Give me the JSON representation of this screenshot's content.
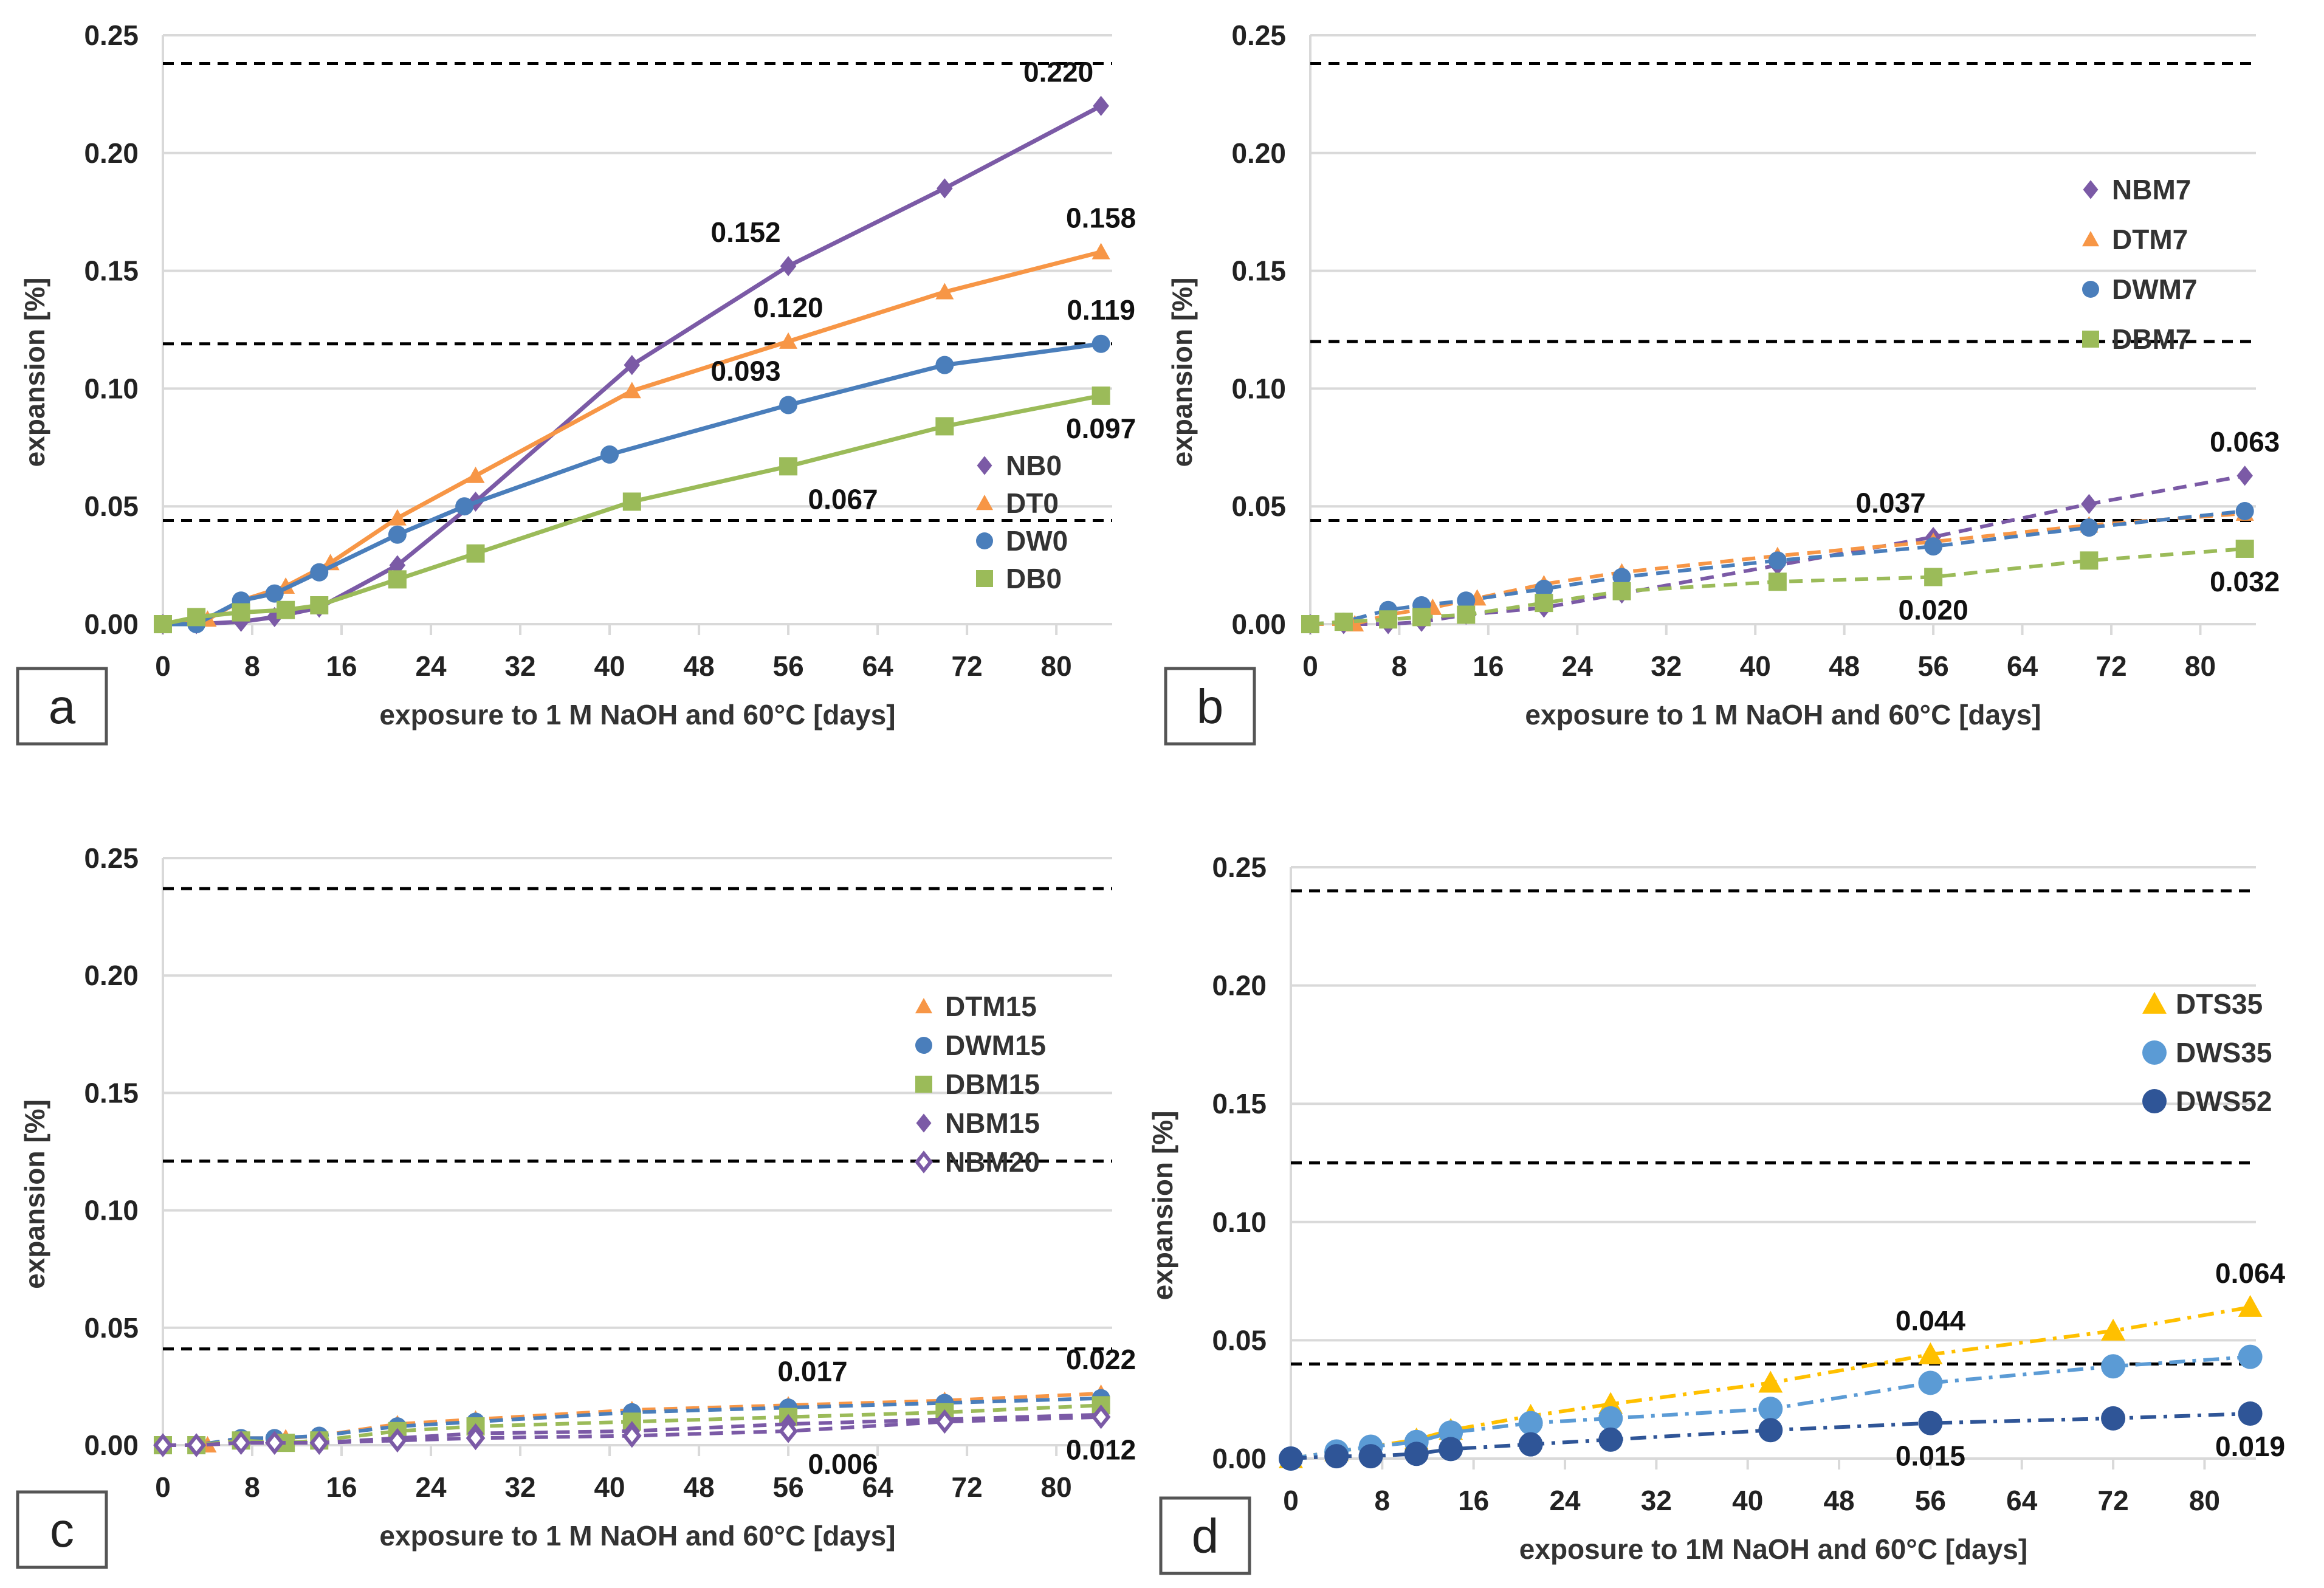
{
  "colors": {
    "purple": "#7b5aa6",
    "orange": "#f79646",
    "blue": "#4a7ebb",
    "green": "#9bbb59",
    "gold": "#ffc000",
    "lightblue": "#5b9bd5",
    "navy": "#2f5597",
    "grid": "#d9d9d9",
    "ref": "#000000"
  },
  "chart_data": [
    {
      "panel": "a",
      "type": "line",
      "xlabel": "exposure to 1 M NaOH and 60°C [days]",
      "ylabel": "expansion [%]",
      "xlim": [
        0,
        85
      ],
      "ylim": [
        0,
        0.25
      ],
      "xticks": [
        "0",
        "8",
        "16",
        "24",
        "32",
        "40",
        "48",
        "56",
        "64",
        "72",
        "80"
      ],
      "yticks": [
        "0.00",
        "0.05",
        "0.10",
        "0.15",
        "0.20",
        "0.25"
      ],
      "reference_lines": [
        0.238,
        0.119,
        0.044
      ],
      "legend": "bottom-right",
      "series": [
        {
          "name": "NB0",
          "marker": "diamond",
          "line": "solid",
          "color": "#7b5aa6",
          "x": [
            0,
            3,
            7,
            10,
            14,
            21,
            28,
            42,
            56,
            70,
            84
          ],
          "y": [
            0,
            0,
            0.001,
            0.003,
            0.007,
            0.025,
            0.052,
            0.11,
            0.152,
            0.185,
            0.22
          ]
        },
        {
          "name": "DT0",
          "marker": "triangle",
          "line": "solid",
          "color": "#f79646",
          "x": [
            0,
            4,
            7,
            11,
            15,
            21,
            28,
            42,
            56,
            70,
            84
          ],
          "y": [
            0,
            0.002,
            0.01,
            0.016,
            0.026,
            0.045,
            0.063,
            0.099,
            0.12,
            0.141,
            0.158
          ]
        },
        {
          "name": "DW0",
          "marker": "circle",
          "line": "solid",
          "color": "#4a7ebb",
          "x": [
            0,
            3,
            7,
            10,
            14,
            21,
            27,
            40,
            56,
            70,
            84
          ],
          "y": [
            0,
            0,
            0.01,
            0.013,
            0.022,
            0.038,
            0.05,
            0.072,
            0.093,
            0.11,
            0.119
          ]
        },
        {
          "name": "DB0",
          "marker": "square",
          "line": "solid",
          "color": "#9bbb59",
          "x": [
            0,
            3,
            7,
            11,
            14,
            21,
            28,
            42,
            56,
            70,
            84
          ],
          "y": [
            0,
            0.003,
            0.005,
            0.006,
            0.008,
            0.019,
            0.03,
            0.052,
            0.067,
            0.084,
            0.097
          ]
        }
      ],
      "annotations": [
        {
          "text": "0.220",
          "x": 84,
          "y": 0.22,
          "position": "above-left"
        },
        {
          "text": "0.152",
          "x": 56,
          "y": 0.152,
          "position": "above-left"
        },
        {
          "text": "0.158",
          "x": 84,
          "y": 0.158,
          "position": "above"
        },
        {
          "text": "0.120",
          "x": 56,
          "y": 0.12,
          "position": "above"
        },
        {
          "text": "0.119",
          "x": 84,
          "y": 0.119,
          "position": "above"
        },
        {
          "text": "0.093",
          "x": 56,
          "y": 0.093,
          "position": "above-left"
        },
        {
          "text": "0.097",
          "x": 84,
          "y": 0.097,
          "position": "below"
        },
        {
          "text": "0.067",
          "x": 56,
          "y": 0.067,
          "position": "below-right"
        }
      ]
    },
    {
      "panel": "b",
      "type": "line",
      "xlabel": "exposure to 1 M NaOH and 60°C [days]",
      "ylabel": "expansion [%]",
      "xlim": [
        0,
        85
      ],
      "ylim": [
        0,
        0.25
      ],
      "xticks": [
        "0",
        "8",
        "16",
        "24",
        "32",
        "40",
        "48",
        "56",
        "64",
        "72",
        "80"
      ],
      "yticks": [
        "0.00",
        "0.05",
        "0.10",
        "0.15",
        "0.20",
        "0.25"
      ],
      "reference_lines": [
        0.238,
        0.12,
        0.044
      ],
      "legend": "top-right",
      "series": [
        {
          "name": "NBM7",
          "marker": "diamond",
          "line": "dashed",
          "color": "#7b5aa6",
          "x": [
            0,
            3,
            7,
            10,
            14,
            21,
            28,
            42,
            56,
            70,
            84
          ],
          "y": [
            0,
            0,
            0,
            0.001,
            0.004,
            0.007,
            0.013,
            0.025,
            0.037,
            0.051,
            0.063
          ]
        },
        {
          "name": "DTM7",
          "marker": "triangle",
          "line": "dashed",
          "color": "#f79646",
          "x": [
            0,
            4,
            7,
            11,
            15,
            21,
            28,
            42,
            56,
            70,
            84
          ],
          "y": [
            0,
            0,
            0.004,
            0.007,
            0.011,
            0.017,
            0.022,
            0.029,
            0.035,
            0.042,
            0.047
          ]
        },
        {
          "name": "DWM7",
          "marker": "circle",
          "line": "dashed",
          "color": "#4a7ebb",
          "x": [
            0,
            3,
            7,
            10,
            14,
            21,
            28,
            42,
            56,
            70,
            84
          ],
          "y": [
            0,
            0.001,
            0.006,
            0.008,
            0.01,
            0.015,
            0.02,
            0.027,
            0.033,
            0.041,
            0.048
          ]
        },
        {
          "name": "DBM7",
          "marker": "square",
          "line": "dashed",
          "color": "#9bbb59",
          "x": [
            0,
            3,
            7,
            10,
            14,
            21,
            28,
            42,
            56,
            70,
            84
          ],
          "y": [
            0,
            0.001,
            0.002,
            0.003,
            0.004,
            0.009,
            0.014,
            0.018,
            0.02,
            0.027,
            0.032
          ]
        }
      ],
      "annotations": [
        {
          "text": "0.063",
          "x": 84,
          "y": 0.063,
          "position": "above"
        },
        {
          "text": "0.037",
          "x": 56,
          "y": 0.037,
          "position": "above-left"
        },
        {
          "text": "0.020",
          "x": 56,
          "y": 0.02,
          "position": "below"
        },
        {
          "text": "0.032",
          "x": 84,
          "y": 0.032,
          "position": "below"
        }
      ]
    },
    {
      "panel": "c",
      "type": "line",
      "xlabel": "exposure to 1 M NaOH and 60°C [days]",
      "ylabel": "expansion [%]",
      "xlim": [
        0,
        85
      ],
      "ylim": [
        0,
        0.25
      ],
      "xticks": [
        "0",
        "8",
        "16",
        "24",
        "32",
        "40",
        "48",
        "56",
        "64",
        "72",
        "80"
      ],
      "yticks": [
        "0.00",
        "0.05",
        "0.10",
        "0.15",
        "0.20",
        "0.25"
      ],
      "reference_lines": [
        0.237,
        0.121,
        0.041
      ],
      "legend": "right",
      "series": [
        {
          "name": "DTM15",
          "marker": "triangle",
          "line": "dashed",
          "color": "#f79646",
          "x": [
            0,
            4,
            7,
            11,
            14,
            21,
            28,
            42,
            56,
            70,
            84
          ],
          "y": [
            0,
            0,
            0.003,
            0.003,
            0.004,
            0.009,
            0.011,
            0.015,
            0.017,
            0.019,
            0.022
          ]
        },
        {
          "name": "DWM15",
          "marker": "circle",
          "line": "dashed",
          "color": "#4a7ebb",
          "x": [
            0,
            3,
            7,
            10,
            14,
            21,
            28,
            42,
            56,
            70,
            84
          ],
          "y": [
            0,
            0,
            0.003,
            0.003,
            0.004,
            0.008,
            0.01,
            0.014,
            0.016,
            0.018,
            0.02
          ]
        },
        {
          "name": "DBM15",
          "marker": "square",
          "line": "dashed",
          "color": "#9bbb59",
          "x": [
            0,
            3,
            7,
            11,
            14,
            21,
            28,
            42,
            56,
            70,
            84
          ],
          "y": [
            0,
            0,
            0.002,
            0.001,
            0.002,
            0.006,
            0.008,
            0.01,
            0.012,
            0.014,
            0.017
          ]
        },
        {
          "name": "NBM15",
          "marker": "diamond",
          "line": "dashed",
          "color": "#7b5aa6",
          "x": [
            0,
            3,
            7,
            10,
            14,
            21,
            28,
            42,
            56,
            70,
            84
          ],
          "y": [
            0,
            0,
            0.001,
            0.001,
            0.001,
            0.003,
            0.005,
            0.006,
            0.009,
            0.011,
            0.013
          ]
        },
        {
          "name": "NBM20",
          "marker": "open-diamond",
          "line": "dashed",
          "color": "#7b5aa6",
          "x": [
            0,
            3,
            7,
            10,
            14,
            21,
            28,
            42,
            56,
            70,
            84
          ],
          "y": [
            0,
            0,
            0.001,
            0.001,
            0.001,
            0.002,
            0.003,
            0.004,
            0.006,
            0.01,
            0.012
          ]
        }
      ],
      "annotations": [
        {
          "text": "0.017",
          "x": 56,
          "y": 0.017,
          "position": "above-right"
        },
        {
          "text": "0.022",
          "x": 84,
          "y": 0.022,
          "position": "above"
        },
        {
          "text": "0.006",
          "x": 56,
          "y": 0.006,
          "position": "below-right"
        },
        {
          "text": "0.012",
          "x": 84,
          "y": 0.012,
          "position": "below"
        }
      ]
    },
    {
      "panel": "d",
      "type": "line",
      "xlabel": "exposure to 1M NaOH and 60°C [days]",
      "ylabel": "expansion [%]",
      "xlim": [
        0,
        84.5
      ],
      "ylim": [
        0,
        0.25
      ],
      "xticks": [
        "0",
        "8",
        "16",
        "24",
        "32",
        "40",
        "48",
        "56",
        "64",
        "72",
        "80"
      ],
      "yticks": [
        "0.00",
        "0.05",
        "0.10",
        "0.15",
        "0.20",
        "0.25"
      ],
      "reference_lines": [
        0.24,
        0.125,
        0.04
      ],
      "legend": "top-right",
      "series": [
        {
          "name": "DTS35",
          "marker": "triangle",
          "line": "dashdot",
          "color": "#ffc000",
          "x": [
            0,
            4,
            7,
            11,
            14,
            21,
            28,
            42,
            56,
            72,
            84
          ],
          "y": [
            0,
            0.003,
            0.005,
            0.008,
            0.012,
            0.018,
            0.023,
            0.032,
            0.044,
            0.054,
            0.064
          ]
        },
        {
          "name": "DWS35",
          "marker": "circle",
          "line": "dashdot",
          "color": "#5b9bd5",
          "x": [
            0,
            4,
            7,
            11,
            14,
            21,
            28,
            42,
            56,
            72,
            84
          ],
          "y": [
            0,
            0.003,
            0.005,
            0.007,
            0.011,
            0.015,
            0.017,
            0.021,
            0.032,
            0.039,
            0.043
          ]
        },
        {
          "name": "DWS52",
          "marker": "circle",
          "line": "dashdot",
          "color": "#2f5597",
          "x": [
            0,
            4,
            7,
            11,
            14,
            21,
            28,
            42,
            56,
            72,
            84
          ],
          "y": [
            0,
            0.001,
            0.001,
            0.002,
            0.004,
            0.006,
            0.008,
            0.012,
            0.015,
            0.017,
            0.019
          ]
        }
      ],
      "annotations": [
        {
          "text": "0.064",
          "x": 84,
          "y": 0.064,
          "position": "above"
        },
        {
          "text": "0.044",
          "x": 56,
          "y": 0.044,
          "position": "above"
        },
        {
          "text": "0.015",
          "x": 56,
          "y": 0.015,
          "position": "below"
        },
        {
          "text": "0.019",
          "x": 84,
          "y": 0.019,
          "position": "below"
        }
      ]
    }
  ]
}
